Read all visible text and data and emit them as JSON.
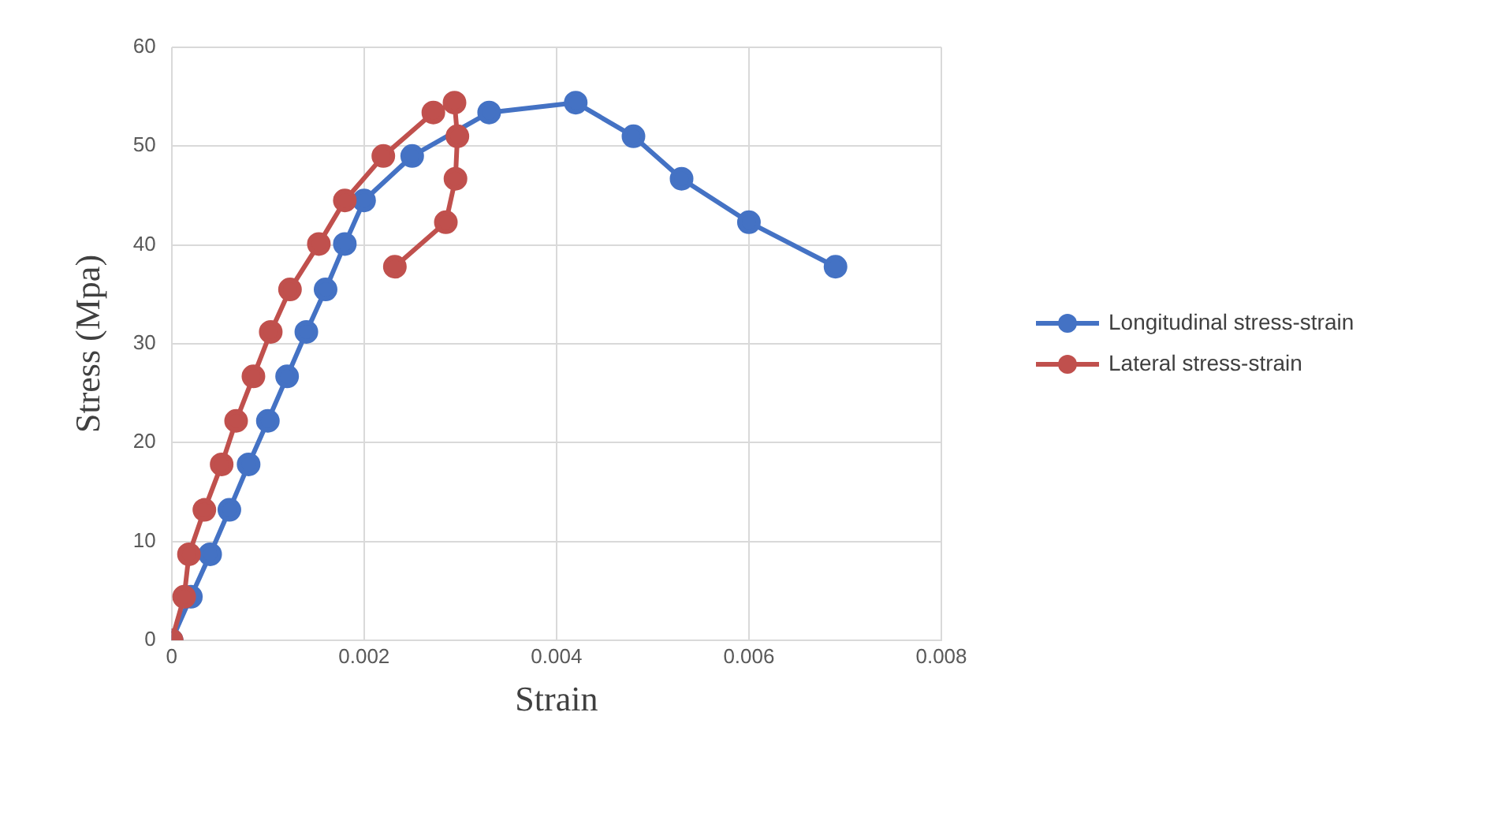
{
  "chart_data": {
    "type": "line",
    "xlabel": "Strain",
    "ylabel": "Stress (Mpa)",
    "xlim": [
      0,
      0.008
    ],
    "xticks": [
      0,
      0.002,
      0.004,
      0.006,
      0.008
    ],
    "ylim": [
      0,
      60
    ],
    "yticks": [
      0,
      10,
      20,
      30,
      40,
      50,
      60
    ],
    "grid": true,
    "legend": "right",
    "marker": "circle",
    "line_style": "solid",
    "series": [
      {
        "name": "Longitudinal stress-strain",
        "color": "#4472c4",
        "x": [
          0,
          0.0002,
          0.0004,
          0.0006,
          0.0008,
          0.001,
          0.0012,
          0.0014,
          0.0016,
          0.0018,
          0.002,
          0.0025,
          0.0033,
          0.0042,
          0.0048,
          0.0053,
          0.006,
          0.0069
        ],
        "values": [
          0,
          4.4,
          8.7,
          13.2,
          17.8,
          22.2,
          26.7,
          31.2,
          35.5,
          40.1,
          44.5,
          49,
          53.4,
          54.4,
          51,
          46.7,
          42.3,
          37.8
        ]
      },
      {
        "name": "Lateral stress-strain",
        "color": "#c0504d",
        "x": [
          0,
          0.00013,
          0.00018,
          0.00034,
          0.00052,
          0.00067,
          0.00085,
          0.00103,
          0.00123,
          0.00153,
          0.0018,
          0.0022,
          0.00272,
          0.00294,
          0.00297,
          0.00295,
          0.00285,
          0.00232
        ],
        "values": [
          0,
          4.4,
          8.7,
          13.2,
          17.8,
          22.2,
          26.7,
          31.2,
          35.5,
          40.1,
          44.5,
          49,
          53.4,
          54.4,
          51,
          46.7,
          42.3,
          37.8
        ]
      }
    ]
  }
}
